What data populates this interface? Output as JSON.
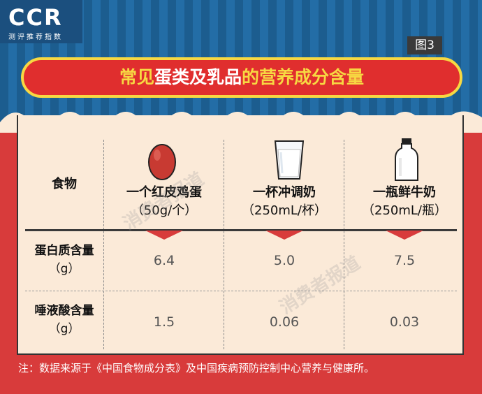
{
  "logo": {
    "text": "CCR",
    "subtitle": "测评推荐指数"
  },
  "figure_tag": "图3",
  "title": {
    "part1": "常见",
    "part2": "蛋类及乳品",
    "part3": "的营养成分含量"
  },
  "table": {
    "header_label": "食物",
    "columns": [
      {
        "name": "一个红皮鸡蛋",
        "unit": "（50g/个）",
        "icon": "egg-icon"
      },
      {
        "name": "一杯冲调奶",
        "unit": "（250mL/杯）",
        "icon": "glass-icon"
      },
      {
        "name": "一瓶鲜牛奶",
        "unit": "（250mL/瓶）",
        "icon": "milk-bottle-icon"
      }
    ],
    "rows": [
      {
        "label": "蛋白质含量",
        "unit": "（g）",
        "values": [
          "6.4",
          "5.0",
          "7.5"
        ]
      },
      {
        "label": "唾液酸含量",
        "unit": "（g）",
        "values": [
          "1.5",
          "0.06",
          "0.03"
        ]
      }
    ]
  },
  "watermark": "消费者报道",
  "note": "注：数据来源于《中国食物成分表》及中国疾病预防控制中心营养与健康所。",
  "colors": {
    "red": "#d83b3b",
    "blue": "#1c5d8f",
    "yellow": "#f7d842",
    "cream": "#fbead8"
  }
}
